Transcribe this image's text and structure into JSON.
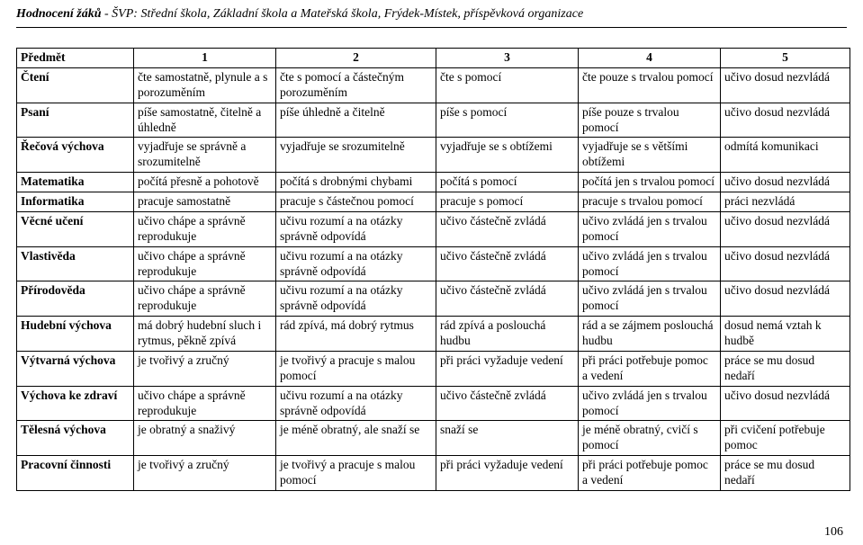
{
  "header": {
    "title_bold": "Hodnocení žáků",
    "title_rest": " - ŠVP: Střední škola, Základní škola a Mateřská škola, Frýdek-Místek, příspěvková organizace"
  },
  "page_number": "106",
  "table": {
    "header": {
      "col0": "Předmět",
      "col1": "1",
      "col2": "2",
      "col3": "3",
      "col4": "4",
      "col5": "5"
    },
    "rows": [
      {
        "subject": "Čtení",
        "c1": "čte samostatně, plynule a s porozuměním",
        "c2": "čte s pomocí a částečným porozuměním",
        "c3": "čte s pomocí",
        "c4": "čte pouze s trvalou pomocí",
        "c5": "učivo dosud nezvládá"
      },
      {
        "subject": "Psaní",
        "c1": "píše samostatně, čitelně a úhledně",
        "c2": "píše úhledně a čitelně",
        "c3": "píše s pomocí",
        "c4": "píše pouze s trvalou pomocí",
        "c5": "učivo dosud nezvládá"
      },
      {
        "subject": "Řečová výchova",
        "c1": "vyjadřuje se správně a srozumitelně",
        "c2": "vyjadřuje se srozumitelně",
        "c3": "vyjadřuje se s obtížemi",
        "c4": "vyjadřuje se s většími obtížemi",
        "c5": "odmítá komunikaci"
      },
      {
        "subject": "Matematika",
        "c1": "počítá přesně a pohotově",
        "c2": "počítá s drobnými chybami",
        "c3": "počítá s pomocí",
        "c4": "počítá jen s trvalou pomocí",
        "c5": "učivo dosud nezvládá"
      },
      {
        "subject": "Informatika",
        "c1": "pracuje samostatně",
        "c2": "pracuje s částečnou pomocí",
        "c3": "pracuje s pomocí",
        "c4": "pracuje s trvalou pomocí",
        "c5": "práci nezvládá"
      },
      {
        "subject": "Věcné učení",
        "c1": "učivo chápe a správně reprodukuje",
        "c2": "učivu rozumí a na otázky správně odpovídá",
        "c3": "učivo částečně zvládá",
        "c4": "učivo zvládá jen s trvalou pomocí",
        "c5": "učivo dosud nezvládá"
      },
      {
        "subject": "Vlastivěda",
        "c1": "učivo chápe a správně reprodukuje",
        "c2": "učivu rozumí a na otázky správně odpovídá",
        "c3": "učivo částečně zvládá",
        "c4": "učivo zvládá jen s trvalou pomocí",
        "c5": "učivo dosud nezvládá"
      },
      {
        "subject": "Přírodověda",
        "c1": "učivo chápe a správně reprodukuje",
        "c2": "učivu rozumí a na otázky správně odpovídá",
        "c3": "učivo částečně zvládá",
        "c4": "učivo zvládá jen s trvalou pomocí",
        "c5": "učivo dosud nezvládá"
      },
      {
        "subject": "Hudební výchova",
        "c1": "má dobrý hudební sluch i rytmus, pěkně zpívá",
        "c2": "rád zpívá, má dobrý rytmus",
        "c3": "rád zpívá a poslouchá hudbu",
        "c4": "rád a se zájmem poslouchá hudbu",
        "c5": "dosud nemá vztah k hudbě"
      },
      {
        "subject": "Výtvarná výchova",
        "c1": "je tvořivý a zručný",
        "c2": "je tvořivý a pracuje s malou pomocí",
        "c3": "při práci vyžaduje vedení",
        "c4": "při práci potřebuje pomoc a vedení",
        "c5": "práce se mu dosud nedaří"
      },
      {
        "subject": "Výchova ke zdraví",
        "c1": "učivo chápe a správně reprodukuje",
        "c2": "učivu rozumí a na otázky správně odpovídá",
        "c3": "učivo částečně zvládá",
        "c4": "učivo zvládá jen s trvalou pomocí",
        "c5": "učivo dosud nezvládá"
      },
      {
        "subject": "Tělesná výchova",
        "c1": "je obratný a snaživý",
        "c2": "je méně obratný, ale snaží se",
        "c3": "snaží se",
        "c4": "je méně obratný, cvičí s pomocí",
        "c5": "při cvičení potřebuje pomoc"
      },
      {
        "subject": "Pracovní činnosti",
        "c1": "je tvořivý a zručný",
        "c2": "je tvořivý a pracuje s malou pomocí",
        "c3": "při práci vyžaduje vedení",
        "c4": "při práci potřebuje pomoc a vedení",
        "c5": "práce se mu dosud nedaří"
      }
    ]
  }
}
